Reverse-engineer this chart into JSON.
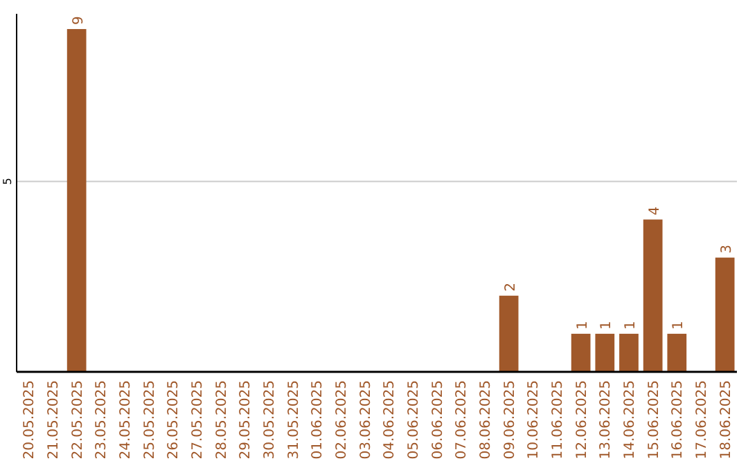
{
  "chart_data": {
    "type": "bar",
    "categories": [
      "20.05.2025",
      "21.05.2025",
      "22.05.2025",
      "23.05.2025",
      "24.05.2025",
      "25.05.2025",
      "26.05.2025",
      "27.05.2025",
      "28.05.2025",
      "29.05.2025",
      "30.05.2025",
      "31.05.2025",
      "01.06.2025",
      "02.06.2025",
      "03.06.2025",
      "04.06.2025",
      "05.06.2025",
      "06.06.2025",
      "07.06.2025",
      "08.06.2025",
      "09.06.2025",
      "10.06.2025",
      "11.06.2025",
      "12.06.2025",
      "13.06.2025",
      "14.06.2025",
      "15.06.2025",
      "16.06.2025",
      "17.06.2025",
      "18.06.2025"
    ],
    "values": [
      0,
      0,
      9,
      0,
      0,
      0,
      0,
      0,
      0,
      0,
      0,
      0,
      0,
      0,
      0,
      0,
      0,
      0,
      0,
      0,
      2,
      0,
      0,
      1,
      1,
      1,
      4,
      1,
      0,
      3
    ],
    "value_labels": [
      null,
      null,
      "9",
      null,
      null,
      null,
      null,
      null,
      null,
      null,
      null,
      null,
      null,
      null,
      null,
      null,
      null,
      null,
      null,
      null,
      "2",
      null,
      null,
      "1",
      "1",
      "1",
      "4",
      "1",
      null,
      "3"
    ],
    "color": "#a0582a",
    "ylim": [
      0,
      9.4
    ],
    "yticks": [
      {
        "value": 0,
        "label": null
      },
      5
    ],
    "grid": "y"
  }
}
